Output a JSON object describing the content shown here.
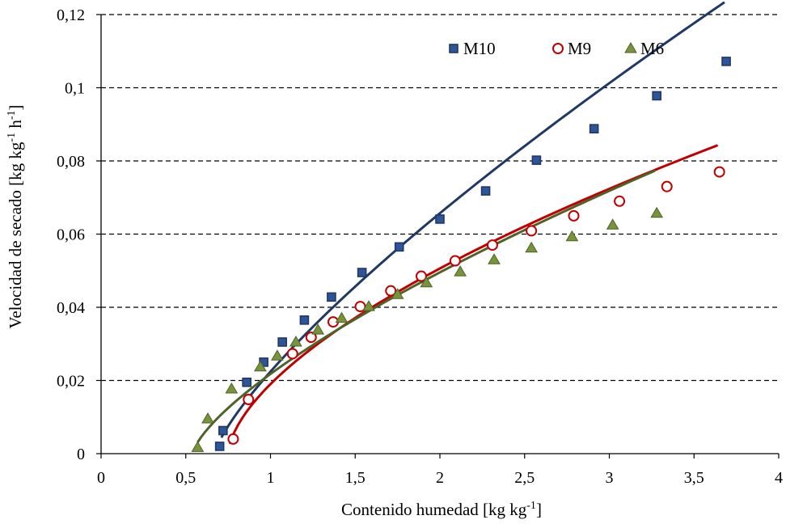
{
  "chart_data": {
    "type": "scatter",
    "xlabel": {
      "main": "Contenido humedad [kg kg",
      "sup": "-1",
      "end": "]"
    },
    "ylabel": {
      "main": "Velocidad de secado [kg kg",
      "sup1": "-1",
      "mid": " h",
      "sup2": "-1",
      "end": "]"
    },
    "xlim": [
      0,
      4
    ],
    "ylim": [
      0,
      0.12
    ],
    "x_ticks": [
      {
        "v": 0,
        "label": "0"
      },
      {
        "v": 0.5,
        "label": "0,5"
      },
      {
        "v": 1,
        "label": "1"
      },
      {
        "v": 1.5,
        "label": "1,5"
      },
      {
        "v": 2,
        "label": "2"
      },
      {
        "v": 2.5,
        "label": "2,5"
      },
      {
        "v": 3,
        "label": "3"
      },
      {
        "v": 3.5,
        "label": "3,5"
      },
      {
        "v": 4,
        "label": "4"
      }
    ],
    "y_ticks": [
      {
        "v": 0,
        "label": "0"
      },
      {
        "v": 0.02,
        "label": "0,02"
      },
      {
        "v": 0.04,
        "label": "0,04"
      },
      {
        "v": 0.06,
        "label": "0,06"
      },
      {
        "v": 0.08,
        "label": "0,08"
      },
      {
        "v": 0.1,
        "label": "0,1"
      },
      {
        "v": 0.12,
        "label": "0,12"
      }
    ],
    "grid": "horizontal-dashed",
    "legend": "top-right",
    "series": [
      {
        "name": "M10",
        "marker": "square",
        "color": "#1f3864",
        "marker_fill": "#2e5597",
        "points": [
          [
            0.7,
            0.002
          ],
          [
            0.72,
            0.0063
          ],
          [
            0.86,
            0.0195
          ],
          [
            0.96,
            0.025
          ],
          [
            1.07,
            0.0305
          ],
          [
            1.2,
            0.0365
          ],
          [
            1.36,
            0.0428
          ],
          [
            1.54,
            0.0495
          ],
          [
            1.76,
            0.0565
          ],
          [
            2.0,
            0.0641
          ],
          [
            2.27,
            0.0718
          ],
          [
            2.57,
            0.0802
          ],
          [
            2.91,
            0.0888
          ],
          [
            3.28,
            0.0978
          ],
          [
            3.69,
            0.1072
          ]
        ],
        "fit_x": [
          0.71,
          3.68
        ]
      },
      {
        "name": "M9",
        "marker": "circle",
        "color": "#c00000",
        "marker_fill": "#ffffff",
        "points": [
          [
            0.78,
            0.004
          ],
          [
            0.87,
            0.0148
          ],
          [
            1.13,
            0.0273
          ],
          [
            1.24,
            0.0318
          ],
          [
            1.37,
            0.036
          ],
          [
            1.53,
            0.0402
          ],
          [
            1.71,
            0.0445
          ],
          [
            1.89,
            0.0485
          ],
          [
            2.09,
            0.0527
          ],
          [
            2.31,
            0.057
          ],
          [
            2.54,
            0.0609
          ],
          [
            2.79,
            0.065
          ],
          [
            3.06,
            0.069
          ],
          [
            3.34,
            0.073
          ],
          [
            3.65,
            0.077
          ]
        ],
        "fit_x": [
          0.76,
          3.64
        ]
      },
      {
        "name": "M6",
        "marker": "triangle",
        "color": "#4f6228",
        "marker_fill": "#77933c",
        "points": [
          [
            0.57,
            0.0017
          ],
          [
            0.63,
            0.0095
          ],
          [
            0.77,
            0.0177
          ],
          [
            0.94,
            0.0237
          ],
          [
            1.04,
            0.0267
          ],
          [
            1.15,
            0.0305
          ],
          [
            1.28,
            0.0338
          ],
          [
            1.42,
            0.037
          ],
          [
            1.58,
            0.0402
          ],
          [
            1.75,
            0.0435
          ],
          [
            1.92,
            0.0467
          ],
          [
            2.12,
            0.0497
          ],
          [
            2.32,
            0.053
          ],
          [
            2.54,
            0.0562
          ],
          [
            2.78,
            0.0593
          ],
          [
            3.02,
            0.0625
          ],
          [
            3.28,
            0.0657
          ]
        ],
        "fit_x": [
          0.57,
          3.27
        ]
      }
    ]
  }
}
